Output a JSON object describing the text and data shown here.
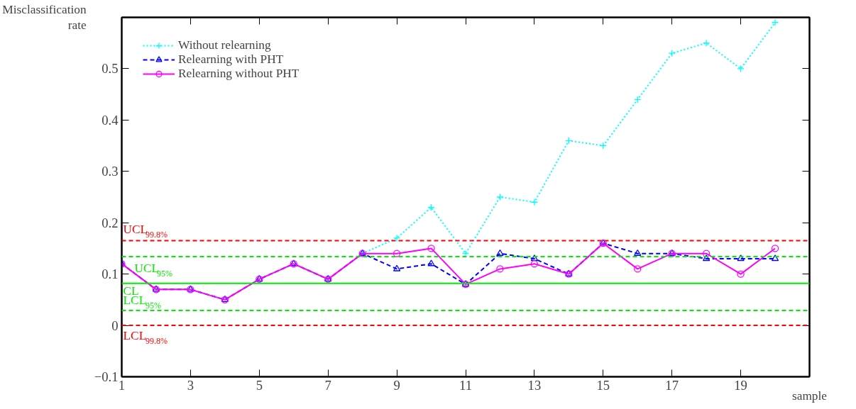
{
  "chart_data": {
    "type": "line",
    "ylabel": "Misclassification rate",
    "xlabel": "sample",
    "x": [
      1,
      2,
      3,
      4,
      5,
      6,
      7,
      8,
      9,
      10,
      11,
      12,
      13,
      14,
      15,
      16,
      17,
      18,
      19,
      20
    ],
    "series": [
      {
        "name": "Without relearning",
        "color": "#00ffff",
        "marker": "cross",
        "line_style": "dotted",
        "values": [
          null,
          null,
          null,
          null,
          null,
          null,
          null,
          0.14,
          0.17,
          0.23,
          0.14,
          0.25,
          0.24,
          0.36,
          0.35,
          0.44,
          0.53,
          0.55,
          0.5,
          0.59
        ]
      },
      {
        "name": "Relearning with PHT",
        "color": "#0000ff",
        "marker": "triangle",
        "line_style": "dashed",
        "values": [
          0.12,
          0.07,
          0.07,
          0.05,
          0.09,
          0.12,
          0.09,
          0.14,
          0.11,
          0.12,
          0.08,
          0.14,
          0.13,
          0.1,
          0.16,
          0.14,
          0.14,
          0.13,
          0.13,
          0.13
        ]
      },
      {
        "name": "Relearning without PHT",
        "color": "#ff00ff",
        "marker": "circle",
        "line_style": "solid",
        "values": [
          0.12,
          0.07,
          0.07,
          0.05,
          0.09,
          0.12,
          0.09,
          0.14,
          0.14,
          0.15,
          0.08,
          0.11,
          0.12,
          0.1,
          0.16,
          0.11,
          0.14,
          0.14,
          0.1,
          0.15
        ]
      }
    ],
    "xlim": [
      1,
      21
    ],
    "xticks": [
      1,
      3,
      5,
      7,
      9,
      11,
      13,
      15,
      17,
      19
    ],
    "ylim": [
      -0.1,
      0.6
    ],
    "yticks": [
      -0.1,
      0,
      0.1,
      0.2,
      0.3,
      0.4,
      0.5
    ],
    "ref_lines": [
      {
        "axis": "y",
        "value": 0.165,
        "label": "UCL$_{99.8%}$",
        "color": "#ff0000",
        "line_style": "dashed"
      },
      {
        "axis": "y",
        "value": 0.134,
        "label": "UCL$_{95%}$",
        "color": "#00ee00",
        "line_style": "dashed"
      },
      {
        "axis": "y",
        "value": 0.082,
        "label": "CL",
        "color": "#00ee00",
        "line_style": "solid"
      },
      {
        "axis": "y",
        "value": 0.029,
        "label": "LCL$_{95%}$",
        "color": "#00ee00",
        "line_style": "dashed"
      },
      {
        "axis": "y",
        "value": 0.0,
        "label": "LCL$_{99.8%}$",
        "color": "#ff0000",
        "line_style": "dashed"
      }
    ],
    "legend": "top left",
    "grid": false
  }
}
